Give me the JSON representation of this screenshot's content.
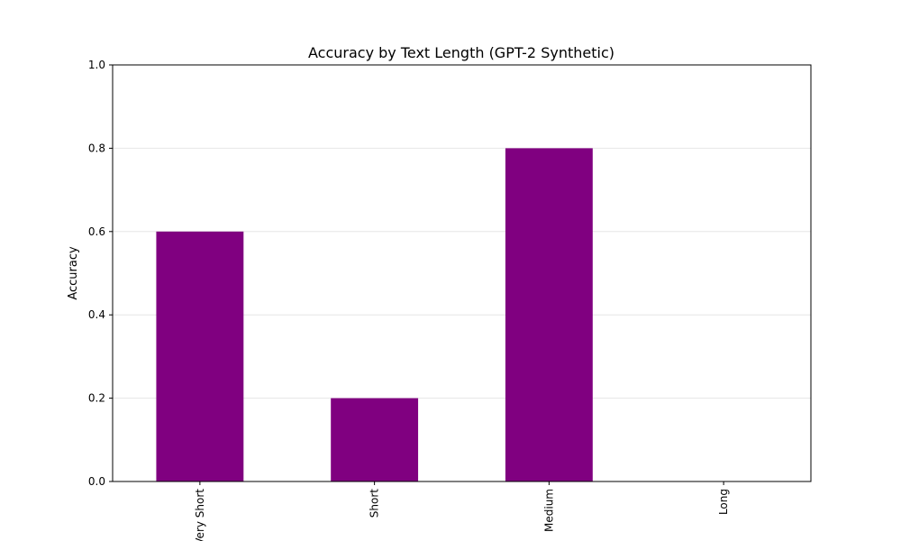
{
  "chart_data": {
    "type": "bar",
    "title": "Accuracy by Text Length (GPT-2 Synthetic)",
    "xlabel": "",
    "ylabel": "Accuracy",
    "categories": [
      "Very Short",
      "Short",
      "Medium",
      "Long"
    ],
    "values": [
      0.6,
      0.2,
      0.8,
      0.0
    ],
    "ylim": [
      0,
      1.0
    ],
    "yticks": [
      0.0,
      0.2,
      0.4,
      0.6,
      0.8,
      1.0
    ],
    "ytick_labels": [
      "0.0",
      "0.2",
      "0.4",
      "0.6",
      "0.8",
      "1.0"
    ],
    "grid": "horizontal",
    "x_tick_rotation": "vertical",
    "legend": "none",
    "bar_color": "#800080",
    "grid_color": "#e6e6e6"
  }
}
